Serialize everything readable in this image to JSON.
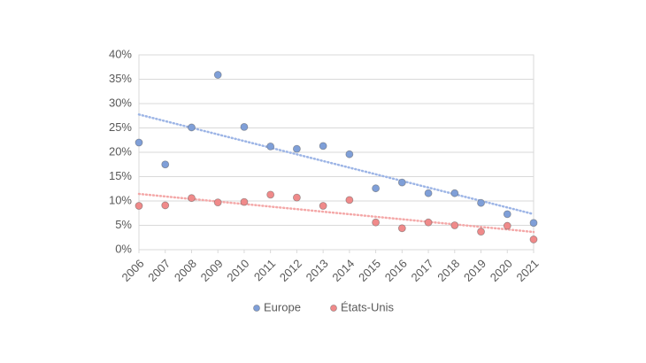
{
  "chart_data": {
    "type": "scatter",
    "x": [
      2006,
      2007,
      2008,
      2009,
      2010,
      2011,
      2012,
      2013,
      2014,
      2015,
      2016,
      2017,
      2018,
      2019,
      2020,
      2021
    ],
    "series": [
      {
        "name": "Europe",
        "color": "#7f9fd8",
        "trend_color": "#9db5e6",
        "values": [
          22.0,
          17.5,
          25.1,
          35.9,
          25.2,
          21.2,
          20.7,
          21.3,
          19.6,
          12.6,
          13.8,
          11.6,
          11.6,
          9.6,
          7.3,
          5.5
        ]
      },
      {
        "name": "États-Unis",
        "color": "#f08a8a",
        "trend_color": "#f4a8a8",
        "values": [
          9.0,
          9.1,
          10.6,
          9.7,
          9.8,
          11.3,
          10.7,
          9.0,
          10.2,
          5.6,
          4.4,
          5.6,
          5.0,
          3.7,
          4.9,
          2.1
        ]
      }
    ],
    "xlim": [
      2006,
      2021
    ],
    "xticks": [
      2006,
      2007,
      2008,
      2009,
      2010,
      2011,
      2012,
      2013,
      2014,
      2015,
      2016,
      2017,
      2018,
      2019,
      2020,
      2021
    ],
    "ylim": [
      0,
      40
    ],
    "yticks": [
      {
        "value": 0,
        "label": "0%"
      },
      {
        "value": 5,
        "label": "5%"
      },
      {
        "value": 10,
        "label": "10%"
      },
      {
        "value": 15,
        "label": "15%"
      },
      {
        "value": 20,
        "label": "20%"
      },
      {
        "value": 25,
        "label": "25%"
      },
      {
        "value": 30,
        "label": "30%"
      },
      {
        "value": 35,
        "label": "35%"
      },
      {
        "value": 40,
        "label": "40%"
      }
    ],
    "grid": true,
    "trendline": true,
    "legend": "bottom"
  }
}
